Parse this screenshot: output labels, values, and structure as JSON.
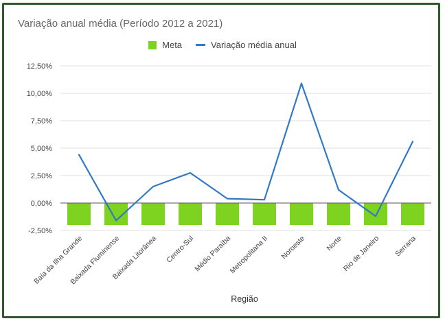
{
  "chart_data": {
    "type": "bar+line",
    "title": "Variação anual média (Período 2012 a 2021)",
    "xlabel": "Região",
    "ylabel": "",
    "categories": [
      "Baía da Ilha Grande",
      "Baixada Fluminense",
      "Baixada Litorânea",
      "Centro-Sul",
      "Médio Paraíba",
      "Metropolitana II",
      "Noroeste",
      "Norte",
      "Rio de Janeiro",
      "Serrana"
    ],
    "series": [
      {
        "name": "Meta",
        "type": "bar",
        "color": "#7ed321",
        "values": [
          -2.0,
          -2.0,
          -2.0,
          -2.0,
          -2.0,
          -2.0,
          -2.0,
          -2.0,
          -2.0,
          -2.0
        ]
      },
      {
        "name": "Variação média anual",
        "type": "line",
        "color": "#3178c6",
        "values": [
          4.4,
          -1.6,
          1.5,
          2.75,
          0.4,
          0.3,
          10.9,
          1.2,
          -1.2,
          5.6
        ]
      }
    ],
    "ylim": [
      -2.5,
      12.5
    ],
    "yticks": [
      "12,50%",
      "10,00%",
      "7,50%",
      "5,00%",
      "2,50%",
      "0,00%",
      "-2,50%"
    ],
    "ytick_values": [
      12.5,
      10,
      7.5,
      5,
      2.5,
      0,
      -2.5
    ],
    "grid": true,
    "legend_position": "top-center"
  }
}
